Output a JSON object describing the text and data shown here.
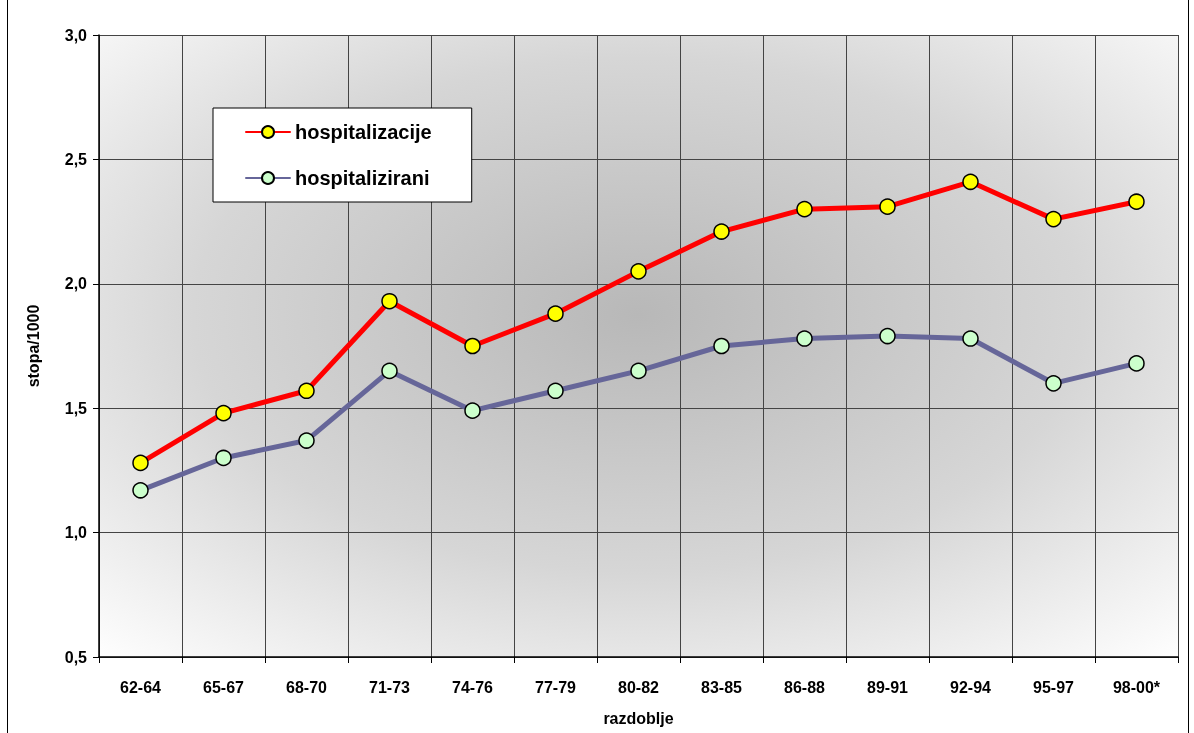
{
  "chart_data": {
    "type": "line",
    "xlabel": "razdoblje",
    "ylabel": "stopa/1000",
    "categories": [
      "62-64",
      "65-67",
      "68-70",
      "71-73",
      "74-76",
      "77-79",
      "80-82",
      "83-85",
      "86-88",
      "89-91",
      "92-94",
      "95-97",
      "98-00*"
    ],
    "ylim": [
      0.5,
      3.0
    ],
    "yticks": [
      {
        "value": 0.5,
        "label": "0,5"
      },
      {
        "value": 1.0,
        "label": "1,0"
      },
      {
        "value": 1.5,
        "label": "1,5"
      },
      {
        "value": 2.0,
        "label": "2,0"
      },
      {
        "value": 2.5,
        "label": "2,5"
      },
      {
        "value": 3.0,
        "label": "3,0"
      }
    ],
    "grid": true,
    "legend": "top left",
    "marker": "circle",
    "line_style": "solid",
    "series": [
      {
        "name": "hospitalizacije",
        "color": "#ff0000",
        "colors": [
          "#ffff00",
          "#ffff00",
          "#ffff00",
          "#ffff00",
          "#ffff00",
          "#ffff00",
          "#ffff00",
          "#ffff00",
          "#ffff00",
          "#ffff00",
          "#ffff00",
          "#ffff00",
          "#ffff00"
        ],
        "values": [
          1.28,
          1.48,
          1.57,
          1.93,
          1.75,
          1.88,
          2.05,
          2.21,
          2.3,
          2.31,
          2.41,
          2.26,
          2.33
        ]
      },
      {
        "name": "hospitalizirani",
        "color": "#666699",
        "colors": [
          "#ccffcc",
          "#ccffcc",
          "#ccffcc",
          "#ccffcc",
          "#ccffcc",
          "#ccffcc",
          "#ccffcc",
          "#ccffcc",
          "#ccffcc",
          "#ccffcc",
          "#ccffcc",
          "#ccffcc",
          "#ccffcc"
        ],
        "values": [
          1.17,
          1.3,
          1.37,
          1.65,
          1.49,
          1.57,
          1.65,
          1.75,
          1.78,
          1.79,
          1.78,
          1.6,
          1.68
        ]
      }
    ]
  }
}
